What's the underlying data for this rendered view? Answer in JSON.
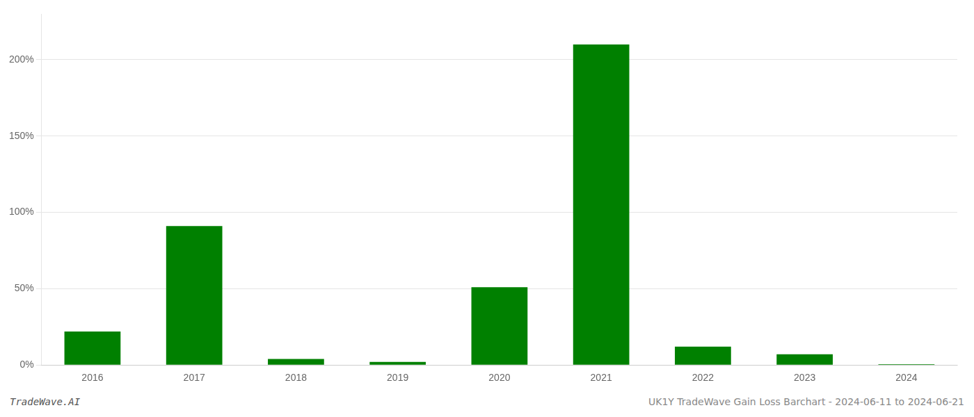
{
  "chart_data": {
    "type": "bar",
    "categories": [
      "2016",
      "2017",
      "2018",
      "2019",
      "2020",
      "2021",
      "2022",
      "2023",
      "2024"
    ],
    "values": [
      22,
      91,
      4,
      2,
      51,
      210,
      12,
      7,
      0.5
    ],
    "color": "#008000",
    "ylim": [
      0,
      230
    ],
    "yticks": [
      {
        "value": 0,
        "label": "0%"
      },
      {
        "value": 50,
        "label": "50%"
      },
      {
        "value": 100,
        "label": "100%"
      },
      {
        "value": 150,
        "label": "150%"
      },
      {
        "value": 200,
        "label": "200%"
      }
    ],
    "grid": true,
    "annotations": [
      "TradeWave.AI",
      "UK1Y TradeWave Gain Loss Barchart - 2024-06-11 to 2024-06-21"
    ]
  }
}
